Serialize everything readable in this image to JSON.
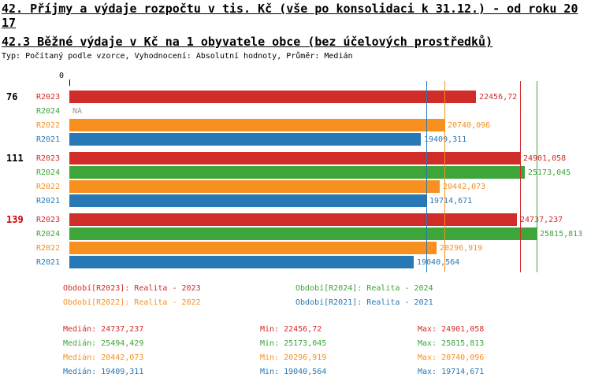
{
  "header": {
    "title_line1": "42. Příjmy a výdaje rozpočtu v tis. Kč (vše po konsolidaci k 31.12.) - od roku 20",
    "title_line2": "17",
    "subtitle": "42.3 Běžné výdaje v Kč na 1 obyvatele obce (bez účelových prostředků)",
    "meta": "Typ: Počítaný podle vzorce, Vyhodnocení: Absolutní hodnoty, Průměr: Medián"
  },
  "chart_data": {
    "type": "bar",
    "orientation": "horizontal",
    "origin_label": "0",
    "axis_max": 25815.813,
    "colors": {
      "R2023": "#d02c2a",
      "R2024": "#3da53a",
      "R2022": "#f7901e",
      "R2021": "#2878b5",
      "na_text": "#999999",
      "group_label": "#000000",
      "group_label_alert": "#cc0000"
    },
    "groups": [
      {
        "label": "76",
        "alert": false,
        "rows": [
          {
            "series": "R2023",
            "value": 22456.72,
            "display": "22456,72"
          },
          {
            "series": "R2024",
            "value": null,
            "display": "NA"
          },
          {
            "series": "R2022",
            "value": 20740.096,
            "display": "20740,096"
          },
          {
            "series": "R2021",
            "value": 19409.311,
            "display": "19409,311"
          }
        ]
      },
      {
        "label": "111",
        "alert": false,
        "rows": [
          {
            "series": "R2023",
            "value": 24901.058,
            "display": "24901,058"
          },
          {
            "series": "R2024",
            "value": 25173.045,
            "display": "25173,045"
          },
          {
            "series": "R2022",
            "value": 20442.073,
            "display": "20442,073"
          },
          {
            "series": "R2021",
            "value": 19714.671,
            "display": "19714,671"
          }
        ]
      },
      {
        "label": "139",
        "alert": true,
        "rows": [
          {
            "series": "R2023",
            "value": 24737.237,
            "display": "24737,237"
          },
          {
            "series": "R2024",
            "value": 25815.813,
            "display": "25815,813"
          },
          {
            "series": "R2022",
            "value": 20296.919,
            "display": "20296,919"
          },
          {
            "series": "R2021",
            "value": 19040.564,
            "display": "19040,564"
          }
        ]
      }
    ],
    "marker_lines": [
      {
        "series": "R2021",
        "value": 19714.671
      },
      {
        "series": "R2022",
        "value": 20740.096
      },
      {
        "series": "R2023",
        "value": 24901.058
      },
      {
        "series": "R2024",
        "value": 25815.813
      }
    ]
  },
  "legend": {
    "items": [
      {
        "series": "R2023",
        "text": "Období[R2023]: Realita - 2023"
      },
      {
        "series": "R2024",
        "text": "Období[R2024]: Realita - 2024"
      },
      {
        "series": "R2022",
        "text": "Období[R2022]: Realita - 2022"
      },
      {
        "series": "R2021",
        "text": "Období[R2021]: Realita - 2021"
      }
    ]
  },
  "stats": {
    "rows": [
      {
        "series": "R2023",
        "median": "Medián: 24737,237",
        "min": "Min: 22456,72",
        "max": "Max: 24901,058"
      },
      {
        "series": "R2024",
        "median": "Medián: 25494,429",
        "min": "Min: 25173,045",
        "max": "Max: 25815,813"
      },
      {
        "series": "R2022",
        "median": "Medián: 20442,073",
        "min": "Min: 20296,919",
        "max": "Max: 20740,096"
      },
      {
        "series": "R2021",
        "median": "Medián: 19409,311",
        "min": "Min: 19040,564",
        "max": "Max: 19714,671"
      }
    ]
  }
}
